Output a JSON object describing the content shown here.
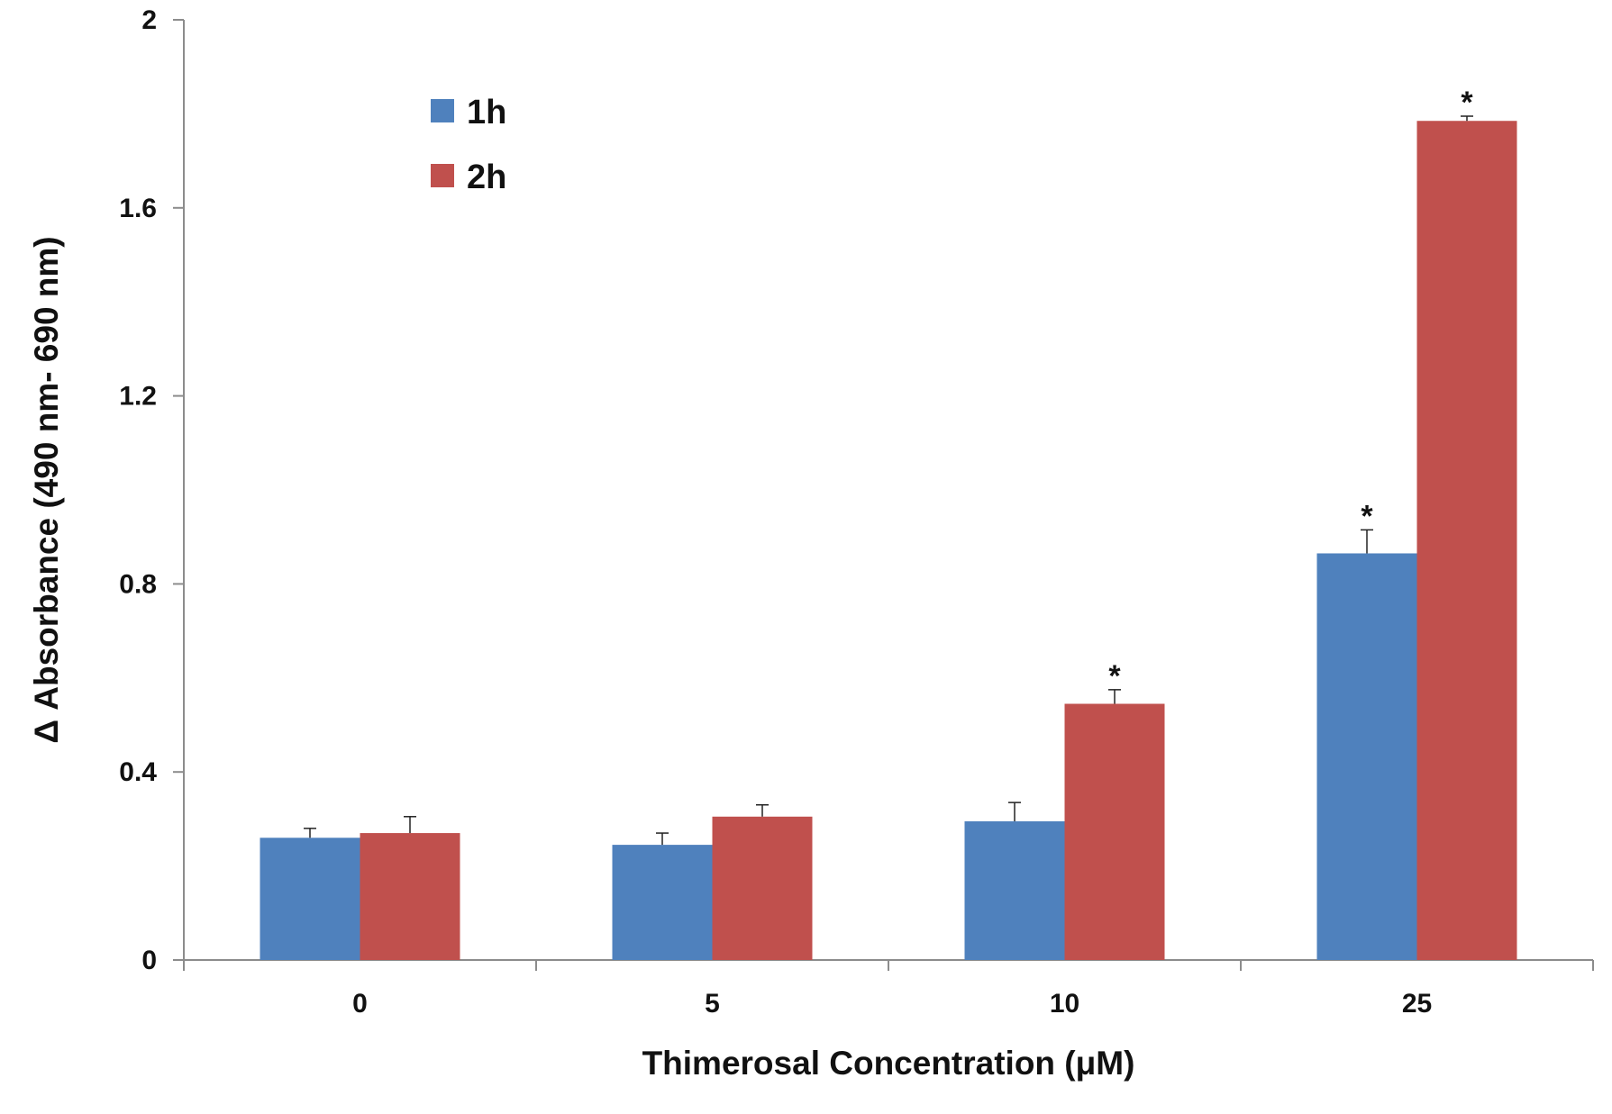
{
  "chart_data": {
    "type": "bar",
    "title": "",
    "xlabel": "Thimerosal Concentration (μM)",
    "ylabel": "Δ Absorbance (490 nm- 690 nm)",
    "categories": [
      "0",
      "5",
      "10",
      "25"
    ],
    "ylim": [
      0,
      2
    ],
    "yticks": [
      {
        "value": 0,
        "label": "0"
      },
      {
        "value": 0.4,
        "label": "0.4"
      },
      {
        "value": 0.8,
        "label": "0.8"
      },
      {
        "value": 1.2,
        "label": "1.2"
      },
      {
        "value": 1.6,
        "label": "1.6"
      },
      {
        "value": 2,
        "label": "2"
      }
    ],
    "grid": false,
    "legend_position": "top-left",
    "series": [
      {
        "name": "1h",
        "color": "#4F81BD",
        "values": [
          0.26,
          0.245,
          0.295,
          0.865
        ],
        "errors": [
          0.02,
          0.025,
          0.04,
          0.05
        ],
        "significance": [
          "",
          "",
          "",
          "*"
        ]
      },
      {
        "name": "2h",
        "color": "#C0504D",
        "values": [
          0.27,
          0.305,
          0.545,
          1.785
        ],
        "errors": [
          0.035,
          0.025,
          0.03,
          0.01
        ],
        "significance": [
          "",
          "",
          "*",
          "*"
        ]
      }
    ]
  }
}
